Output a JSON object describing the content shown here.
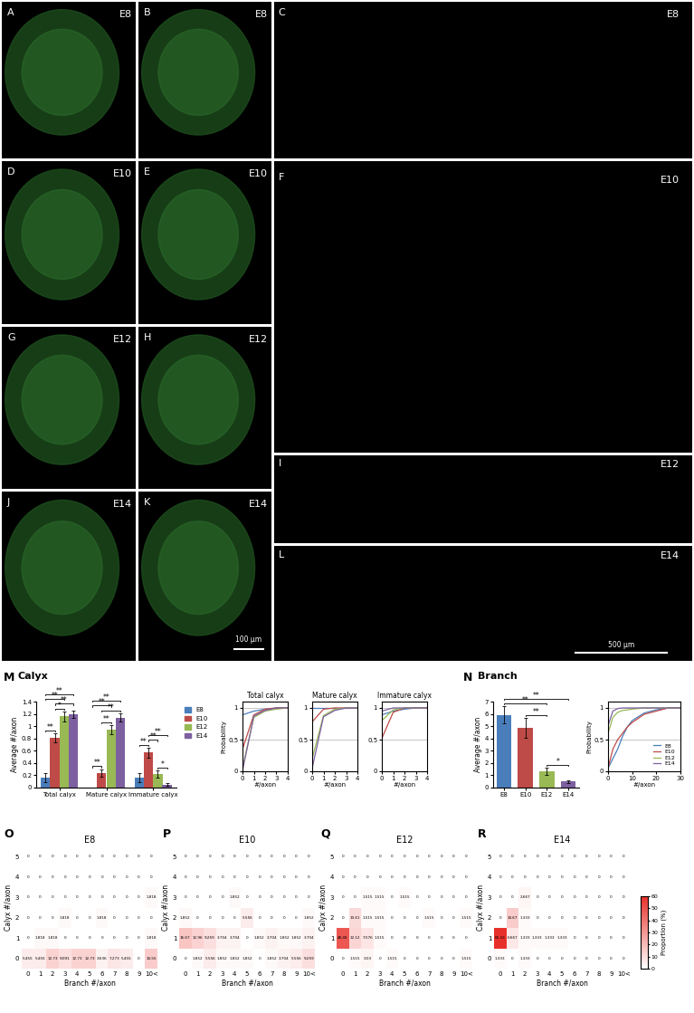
{
  "panels": [
    {
      "panel": "A",
      "kind": "image",
      "label": "E8"
    },
    {
      "panel": "B",
      "kind": "image",
      "label": "E8"
    },
    {
      "panel": "C",
      "kind": "tree",
      "label": "E8"
    },
    {
      "panel": "D",
      "kind": "image",
      "label": "E10"
    },
    {
      "panel": "E",
      "kind": "image",
      "label": "E10"
    },
    {
      "panel": "F",
      "kind": "tree",
      "label": "E10"
    },
    {
      "panel": "G",
      "kind": "image",
      "label": "E12"
    },
    {
      "panel": "H",
      "kind": "image",
      "label": "E12"
    },
    {
      "panel": "I",
      "kind": "tree",
      "label": "E12"
    },
    {
      "panel": "J",
      "kind": "image",
      "label": "E14"
    },
    {
      "panel": "K",
      "kind": "image",
      "label": "E14",
      "scale_bar": "100 µm"
    },
    {
      "panel": "L",
      "kind": "tree",
      "label": "E14",
      "scale_bar": "500 µm"
    }
  ],
  "chart_data": [
    {
      "panel": "M",
      "type": "bar",
      "title": "Calyx",
      "ylabel": "Average #/axon",
      "categories": [
        "Total calyx",
        "Mature calyx",
        "Immature calyx"
      ],
      "ylim": [
        0,
        1.4
      ],
      "yticks": [
        0,
        0.2,
        0.4,
        0.6,
        0.8,
        1,
        1.2,
        1.4
      ],
      "legend": "upper left",
      "series": [
        {
          "name": "E8",
          "color": "#4a7ebb",
          "values": [
            0.16,
            0,
            0.16
          ],
          "errors": [
            0.07,
            0,
            0.07
          ]
        },
        {
          "name": "E10",
          "color": "#be4b48",
          "values": [
            0.81,
            0.24,
            0.57
          ],
          "errors": [
            0.07,
            0.06,
            0.08
          ]
        },
        {
          "name": "E12",
          "color": "#98b954",
          "values": [
            1.16,
            0.94,
            0.22
          ],
          "errors": [
            0.08,
            0.07,
            0.06
          ]
        },
        {
          "name": "E14",
          "color": "#7d60a0",
          "values": [
            1.2,
            1.14,
            0.05
          ],
          "errors": [
            0.06,
            0.07,
            0.02
          ]
        }
      ],
      "significance": [
        {
          "category": "Total calyx",
          "between": [
            "E8",
            "E10"
          ],
          "label": "**"
        },
        {
          "category": "Total calyx",
          "between": [
            "E10",
            "E12"
          ],
          "label": "*"
        },
        {
          "category": "Total calyx",
          "between": [
            "E10",
            "E14"
          ],
          "label": "**"
        },
        {
          "category": "Total calyx",
          "between": [
            "E8",
            "E12"
          ],
          "label": "**"
        },
        {
          "category": "Total calyx",
          "between": [
            "E8",
            "E14"
          ],
          "label": "**"
        },
        {
          "category": "Mature calyx",
          "between": [
            "E8",
            "E10"
          ],
          "label": "**"
        },
        {
          "category": "Mature calyx",
          "between": [
            "E10",
            "E12"
          ],
          "label": "**"
        },
        {
          "category": "Mature calyx",
          "between": [
            "E10",
            "E14"
          ],
          "label": "**"
        },
        {
          "category": "Mature calyx",
          "between": [
            "E8",
            "E12"
          ],
          "label": "**"
        },
        {
          "category": "Mature calyx",
          "between": [
            "E8",
            "E14"
          ],
          "label": "**"
        },
        {
          "category": "Immature calyx",
          "between": [
            "E8",
            "E10"
          ],
          "label": "**"
        },
        {
          "category": "Immature calyx",
          "between": [
            "E12",
            "E14"
          ],
          "label": "*"
        },
        {
          "category": "Immature calyx",
          "between": [
            "E10",
            "E12"
          ],
          "label": "**"
        },
        {
          "category": "Immature calyx",
          "between": [
            "E10",
            "E14"
          ],
          "label": "**"
        }
      ]
    },
    {
      "panel": "M",
      "type": "line",
      "title": "Total calyx",
      "xlabel": "#/axon",
      "ylabel": "Probability",
      "x": [
        0,
        1,
        2,
        3,
        4
      ],
      "xlim": [
        0,
        4
      ],
      "xticks": [
        0,
        1,
        2,
        3,
        4
      ],
      "ylim": [
        0,
        1.1
      ],
      "yticks": [
        0,
        0.5,
        1
      ],
      "reference_lines": [
        0.5,
        1
      ],
      "series": [
        {
          "name": "E8",
          "color": "#4a7ebb",
          "values": [
            0.89,
            0.95,
            0.98,
            1,
            1
          ]
        },
        {
          "name": "E10",
          "color": "#be4b48",
          "values": [
            0.35,
            0.89,
            0.98,
            1,
            1
          ]
        },
        {
          "name": "E12",
          "color": "#98b954",
          "values": [
            0.05,
            0.85,
            0.95,
            0.98,
            1
          ]
        },
        {
          "name": "E14",
          "color": "#7d60a0",
          "values": [
            0.01,
            0.87,
            0.96,
            1,
            1
          ]
        }
      ]
    },
    {
      "panel": "M",
      "type": "line",
      "title": "Mature calyx",
      "xlabel": "#/axon",
      "x": [
        0,
        1,
        2,
        3,
        4
      ],
      "xlim": [
        0,
        4
      ],
      "xticks": [
        0,
        1,
        2,
        3,
        4
      ],
      "ylim": [
        0,
        1.1
      ],
      "yticks": [
        0,
        0.5,
        1
      ],
      "reference_lines": [
        0.5,
        1
      ],
      "series": [
        {
          "name": "E8",
          "color": "#4a7ebb",
          "values": [
            1,
            1,
            1,
            1,
            1
          ]
        },
        {
          "name": "E10",
          "color": "#be4b48",
          "values": [
            0.78,
            0.98,
            1,
            1,
            1
          ]
        },
        {
          "name": "E12",
          "color": "#98b954",
          "values": [
            0.2,
            0.88,
            0.98,
            1,
            1
          ]
        },
        {
          "name": "E14",
          "color": "#7d60a0",
          "values": [
            0.05,
            0.86,
            0.96,
            1,
            1
          ]
        }
      ]
    },
    {
      "panel": "M",
      "type": "line",
      "title": "Immature calyx",
      "xlabel": "#/axon",
      "x": [
        0,
        1,
        2,
        3,
        4
      ],
      "xlim": [
        0,
        4
      ],
      "xticks": [
        0,
        1,
        2,
        3,
        4
      ],
      "ylim": [
        0,
        1.1
      ],
      "yticks": [
        0,
        0.5,
        1
      ],
      "reference_lines": [
        0.5,
        1
      ],
      "series": [
        {
          "name": "E8",
          "color": "#4a7ebb",
          "values": [
            0.89,
            0.95,
            0.98,
            1,
            1
          ]
        },
        {
          "name": "E10",
          "color": "#be4b48",
          "values": [
            0.52,
            0.93,
            1,
            1,
            1
          ]
        },
        {
          "name": "E12",
          "color": "#98b954",
          "values": [
            0.8,
            0.97,
            1,
            1,
            1
          ]
        },
        {
          "name": "E14",
          "color": "#7d60a0",
          "values": [
            0.95,
            1,
            1,
            1,
            1
          ]
        }
      ]
    },
    {
      "panel": "N",
      "type": "bar",
      "title": "Branch",
      "ylabel": "Average #/axon",
      "categories": [
        "E8",
        "E10",
        "E12",
        "E14"
      ],
      "values": [
        5.9,
        4.85,
        1.3,
        0.5
      ],
      "errors": [
        0.7,
        0.8,
        0.3,
        0.1
      ],
      "colors": [
        "#4a7ebb",
        "#be4b48",
        "#98b954",
        "#7d60a0"
      ],
      "ylim": [
        0,
        7
      ],
      "yticks": [
        0,
        1,
        2,
        3,
        4,
        5,
        6,
        7
      ],
      "significance": [
        {
          "between": [
            "E12",
            "E14"
          ],
          "label": "*"
        },
        {
          "between": [
            "E10",
            "E12"
          ],
          "label": "**"
        },
        {
          "between": [
            "E8",
            "E12"
          ],
          "label": "**"
        },
        {
          "between": [
            "E8",
            "E14"
          ],
          "label": "**"
        }
      ]
    },
    {
      "panel": "N",
      "type": "line",
      "xlabel": "#/axon",
      "ylabel": "Probability",
      "x": [
        0,
        2,
        4,
        6,
        8,
        10,
        15,
        20,
        25,
        30
      ],
      "xlim": [
        0,
        30
      ],
      "xticks": [
        0,
        10,
        20,
        30
      ],
      "ylim": [
        0,
        1.1
      ],
      "yticks": [
        0,
        0.5,
        1
      ],
      "reference_lines": [
        0.5,
        1
      ],
      "legend": "lower right",
      "series": [
        {
          "name": "E8",
          "color": "#4a7ebb",
          "values": [
            0.05,
            0.2,
            0.35,
            0.55,
            0.7,
            0.8,
            0.92,
            0.97,
            1,
            1
          ]
        },
        {
          "name": "E10",
          "color": "#be4b48",
          "values": [
            0.05,
            0.35,
            0.5,
            0.6,
            0.7,
            0.77,
            0.9,
            0.95,
            1,
            1
          ]
        },
        {
          "name": "E12",
          "color": "#98b954",
          "values": [
            0.6,
            0.85,
            0.93,
            0.96,
            0.97,
            0.98,
            1,
            1,
            1,
            1
          ]
        },
        {
          "name": "E14",
          "color": "#7d60a0",
          "values": [
            0.72,
            0.95,
            0.99,
            1,
            1,
            1,
            1,
            1,
            1,
            1
          ]
        }
      ]
    },
    {
      "panel": "O",
      "type": "heatmap",
      "title": "E8",
      "xlabel": "Branch #/axon",
      "ylabel": "Calyx #/axon",
      "x_categories": [
        "0",
        "1",
        "2",
        "3",
        "4",
        "5",
        "6",
        "7",
        "8",
        "9",
        "10<"
      ],
      "y_categories": [
        "0",
        "1",
        "2",
        "3",
        "4",
        "5"
      ],
      "data_labels": true,
      "cells": [
        [
          5.455,
          5.455,
          12.73,
          9.091,
          12.73,
          12.73,
          3.636,
          7.273,
          5.455,
          0,
          14.55
        ],
        [
          0,
          1.818,
          1.818,
          0,
          0,
          0,
          0,
          0,
          0,
          0,
          1.818
        ],
        [
          0,
          0,
          0,
          1.818,
          0,
          0,
          1.818,
          0,
          0,
          0,
          0
        ],
        [
          0,
          0,
          0,
          0,
          0,
          0,
          0,
          0,
          0,
          0,
          1.818
        ],
        [
          0,
          0,
          0,
          0,
          0,
          0,
          0,
          0,
          0,
          0,
          0
        ],
        [
          0,
          0,
          0,
          0,
          0,
          0,
          0,
          0,
          0,
          0,
          0
        ]
      ]
    },
    {
      "panel": "P",
      "type": "heatmap",
      "title": "E10",
      "xlabel": "Branch #/axon",
      "ylabel": "Calyx #/axon",
      "x_categories": [
        "0",
        "1",
        "2",
        "3",
        "4",
        "5",
        "6",
        "7",
        "8",
        "9",
        "10<"
      ],
      "y_categories": [
        "0",
        "1",
        "2",
        "3",
        "4",
        "5"
      ],
      "data_labels": true,
      "cells": [
        [
          0,
          1.852,
          5.556,
          1.852,
          1.852,
          1.852,
          0,
          1.852,
          3.704,
          5.556,
          9.259
        ],
        [
          16.67,
          12.96,
          9.259,
          3.704,
          3.704,
          0,
          1.852,
          3.704,
          1.852,
          1.852,
          3.704
        ],
        [
          1.852,
          0,
          0,
          0,
          0,
          5.556,
          0,
          0,
          0,
          0,
          1.852
        ],
        [
          0,
          0,
          0,
          0,
          1.852,
          0,
          0,
          0,
          0,
          0,
          0
        ],
        [
          0,
          0,
          0,
          0,
          0,
          0,
          0,
          0,
          0,
          0,
          0
        ],
        [
          0,
          0,
          0,
          0,
          0,
          0,
          0,
          0,
          0,
          0,
          0
        ]
      ]
    },
    {
      "panel": "Q",
      "type": "heatmap",
      "title": "E12",
      "xlabel": "Branch #/axon",
      "ylabel": "Calyx #/axon",
      "x_categories": [
        "0",
        "1",
        "2",
        "3",
        "4",
        "5",
        "6",
        "7",
        "8",
        "9",
        "10<"
      ],
      "y_categories": [
        "0",
        "1",
        "2",
        "3",
        "4",
        "5"
      ],
      "data_labels": true,
      "cells": [
        [
          0,
          1.515,
          3.03,
          0,
          1.515,
          0,
          0,
          0,
          0,
          0,
          1.515
        ],
        [
          48.48,
          12.12,
          7.576,
          1.515,
          0,
          0,
          0,
          0,
          0,
          0,
          0
        ],
        [
          0,
          10.61,
          1.515,
          1.515,
          0,
          0,
          0,
          1.515,
          0,
          0,
          1.515
        ],
        [
          0,
          0,
          1.515,
          1.515,
          0,
          1.515,
          0,
          0,
          0,
          0,
          0
        ],
        [
          0,
          0,
          0,
          0,
          0,
          0,
          0,
          0,
          0,
          0,
          0
        ],
        [
          0,
          0,
          0,
          0,
          0,
          0,
          0,
          0,
          0,
          0,
          0
        ]
      ]
    },
    {
      "panel": "R",
      "type": "heatmap",
      "title": "E14",
      "xlabel": "Branch #/axon",
      "ylabel": "Calyx #/axon",
      "x_categories": [
        "0",
        "1",
        "2",
        "3",
        "4",
        "5",
        "6",
        "7",
        "8",
        "9",
        "10<"
      ],
      "y_categories": [
        "0",
        "1",
        "2",
        "3",
        "4",
        "5"
      ],
      "data_labels": true,
      "cells": [
        [
          1.333,
          0,
          1.333,
          0,
          0,
          0,
          0,
          0,
          0,
          0,
          0
        ],
        [
          65.33,
          6.667,
          1.333,
          1.333,
          1.333,
          1.333,
          0,
          0,
          0,
          0,
          0
        ],
        [
          0,
          14.67,
          1.333,
          0,
          0,
          0,
          0,
          0,
          0,
          0,
          0
        ],
        [
          0,
          0,
          2.667,
          0,
          0,
          0,
          0,
          0,
          0,
          0,
          0
        ],
        [
          0,
          0,
          0,
          0,
          0,
          0,
          0,
          0,
          0,
          0,
          0
        ],
        [
          0,
          0,
          0,
          0,
          0,
          0,
          0,
          0,
          0,
          0,
          0
        ]
      ],
      "colorbar": {
        "label": "Proportion (%)",
        "range": [
          0,
          60
        ],
        "ticks": [
          0,
          10,
          20,
          30,
          40,
          50,
          60
        ]
      }
    }
  ]
}
